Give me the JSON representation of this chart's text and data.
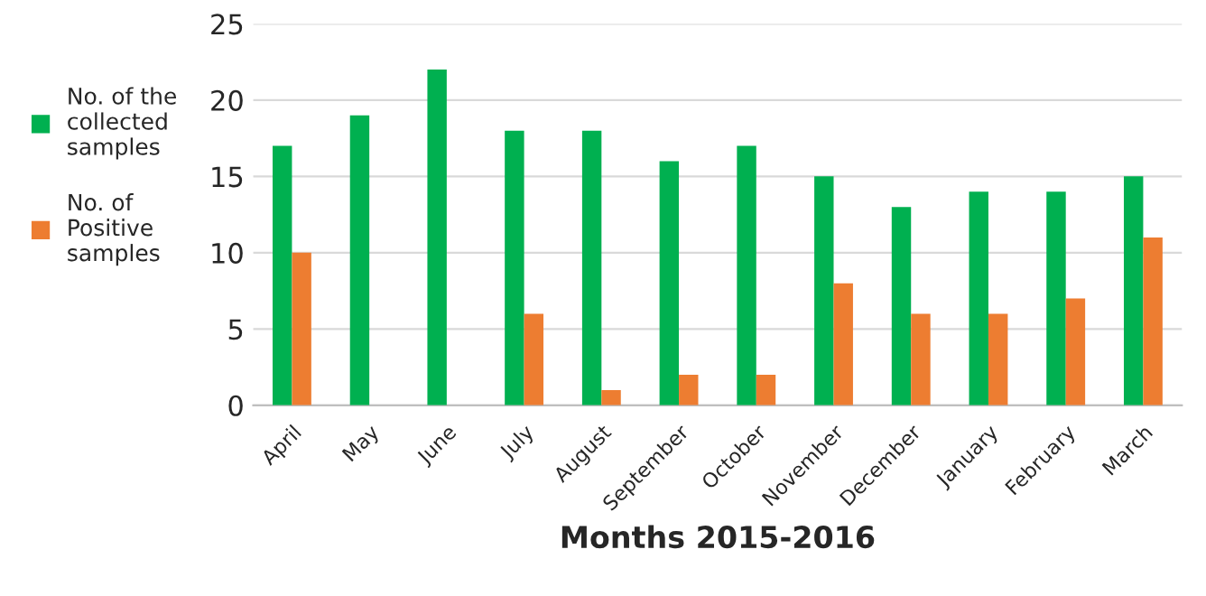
{
  "chart_data": {
    "type": "bar",
    "xlabel": "Months 2015-2016",
    "categories": [
      "April",
      "May",
      "June",
      "July",
      "August",
      "September",
      "October",
      "November",
      "December",
      "January",
      "February",
      "March"
    ],
    "series": [
      {
        "name": "No. of the\ncollected\nsamples",
        "color": "#00b050",
        "values": [
          17,
          19,
          22,
          18,
          18,
          16,
          17,
          15,
          13,
          14,
          14,
          15
        ]
      },
      {
        "name": "No. of\nPositive\nsamples",
        "color": "#ed7d31",
        "values": [
          10,
          0,
          0,
          6,
          1,
          2,
          2,
          8,
          6,
          6,
          7,
          11
        ]
      }
    ],
    "ylim": [
      0,
      25
    ],
    "yticks": [
      0,
      5,
      10,
      15,
      20,
      25
    ],
    "grid": "y",
    "legend": "left"
  }
}
